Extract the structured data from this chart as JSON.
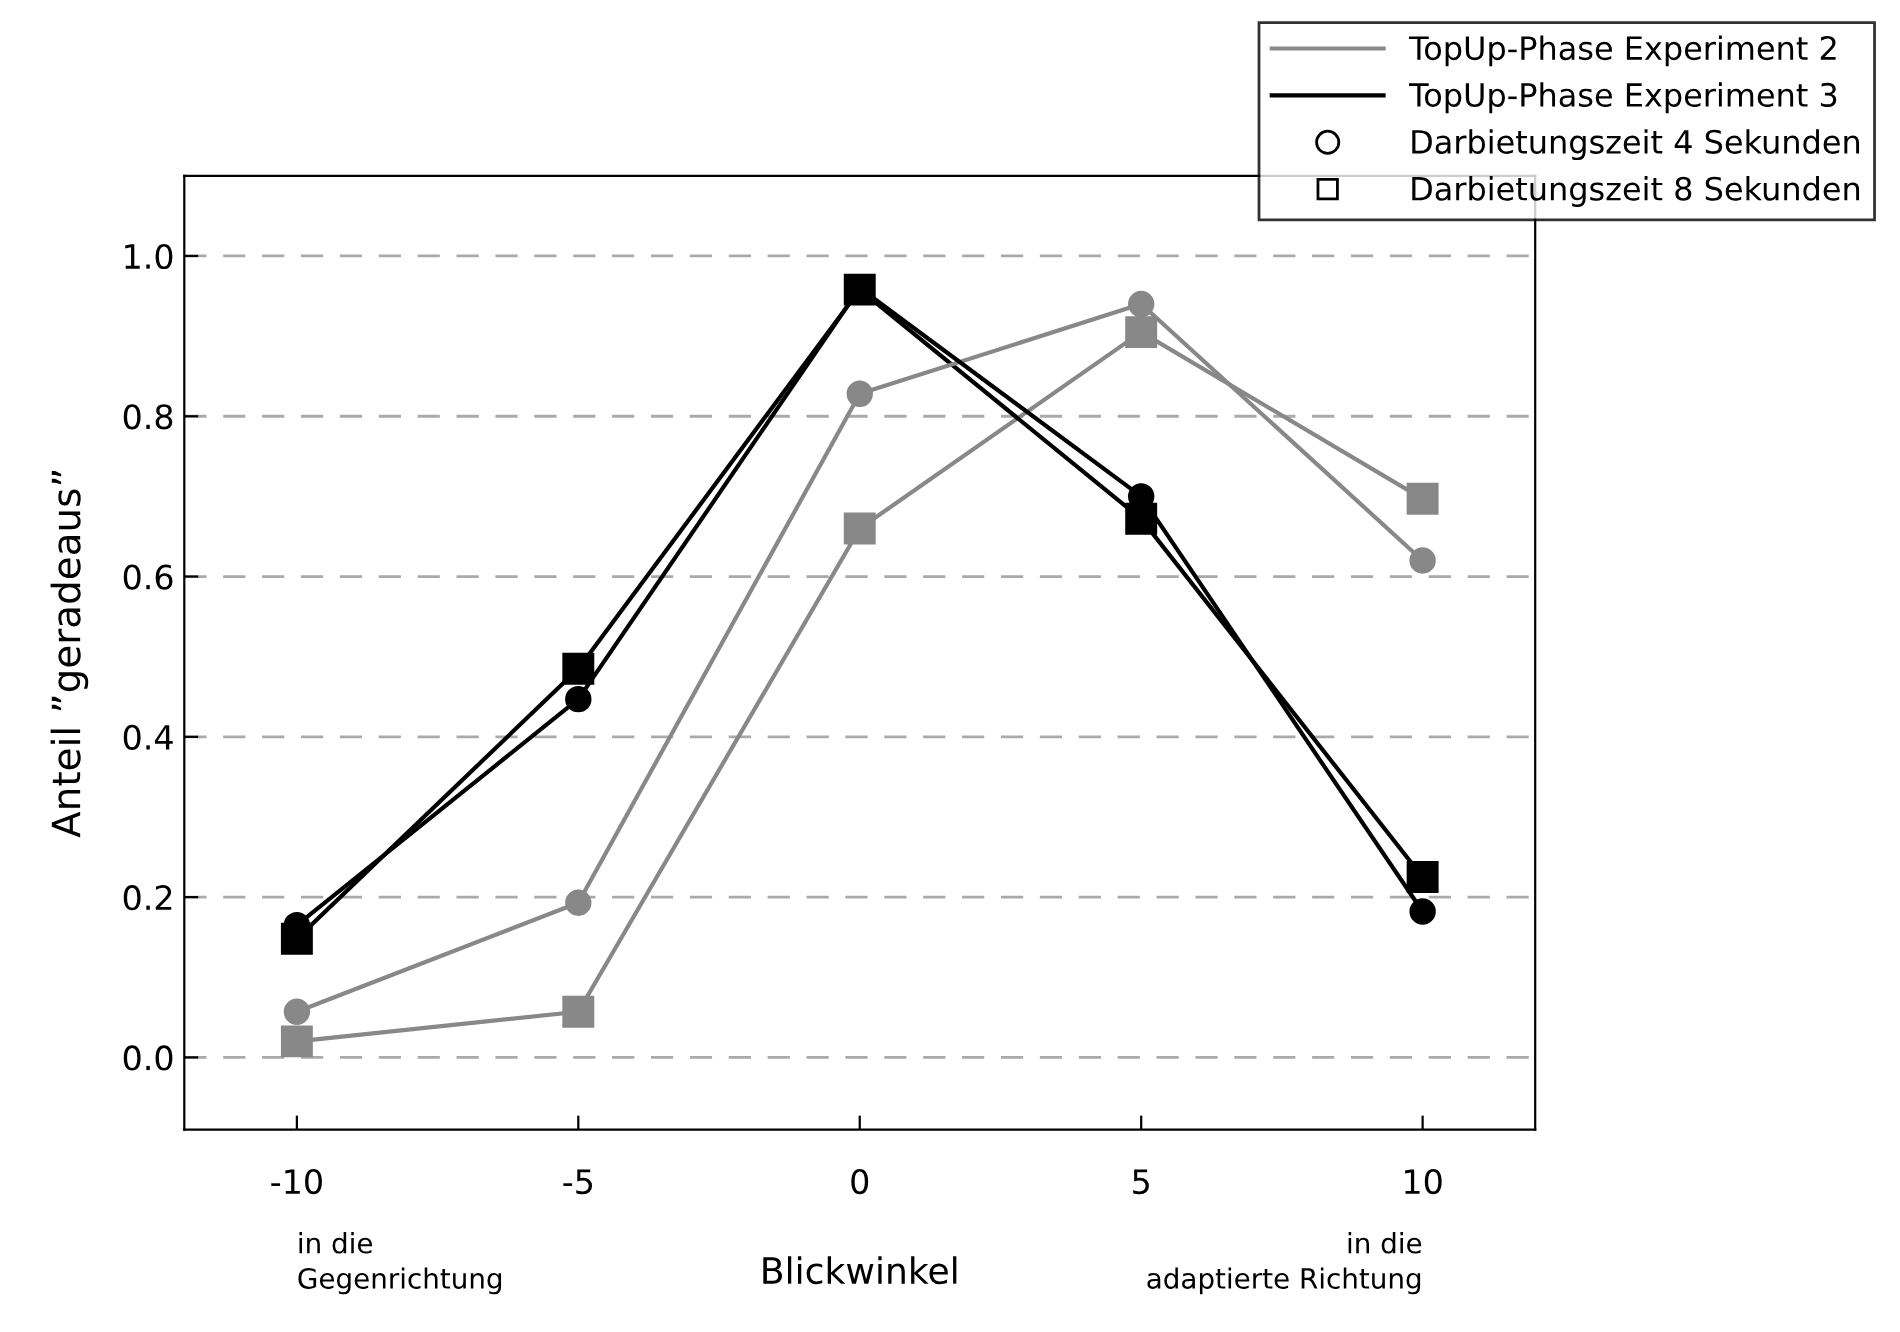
{
  "chart_data": {
    "type": "line",
    "xlabel": "Blickwinkel",
    "ylabel": "Anteil ”geradeaus”",
    "x": [
      -10,
      -5,
      0,
      5,
      10
    ],
    "xlim": [
      -12,
      12
    ],
    "xticks": [
      -10,
      -5,
      0,
      5,
      10
    ],
    "ylim": [
      -0.09,
      1.1
    ],
    "yticks": [
      {
        "value": 0,
        "label": "0.0"
      },
      0.2,
      0.4,
      0.6,
      0.8,
      {
        "value": 1,
        "label": "1.0"
      }
    ],
    "grid": "y",
    "legend": "top right",
    "series": [
      {
        "name": "TopUp-Phase Experiment 2",
        "color": "#888888",
        "marker": "circle",
        "values": [
          0.057,
          0.193,
          0.828,
          0.94,
          0.62
        ]
      },
      {
        "color": "#888888",
        "marker": "square",
        "values": [
          0.02,
          0.057,
          0.66,
          0.905,
          0.697
        ]
      },
      {
        "name": "TopUp-Phase Experiment 3",
        "color": "#000000",
        "marker": "circle",
        "values": [
          0.165,
          0.447,
          0.96,
          0.7,
          0.182
        ]
      },
      {
        "color": "#000000",
        "marker": "square",
        "values": [
          0.148,
          0.485,
          0.958,
          0.672,
          0.225
        ]
      }
    ],
    "annotations": [
      "Darbietungszeit 4 Sekunden",
      "Darbietungszeit 8 Sekunden",
      "in die\nGegenrichtung",
      "in die\nadaptierte Richtung"
    ]
  }
}
